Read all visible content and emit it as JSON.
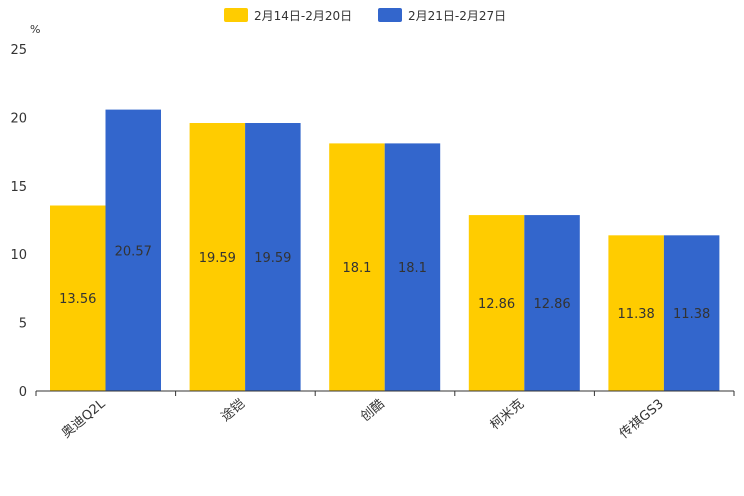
{
  "chart_data": {
    "type": "bar",
    "title": "",
    "xlabel": "",
    "ylabel": "",
    "unit_label": "%",
    "categories": [
      "奥迪Q2L",
      "途铠",
      "创酷",
      "柯米克",
      "传祺GS3"
    ],
    "series": [
      {
        "name": "2月14日-2月20日",
        "color": "#FFCC00",
        "values": [
          13.56,
          19.59,
          18.1,
          12.86,
          11.38
        ]
      },
      {
        "name": "2月21日-2月27日",
        "color": "#3366CC",
        "values": [
          20.57,
          19.59,
          18.1,
          12.86,
          11.38
        ]
      }
    ],
    "ylim": [
      0,
      25
    ],
    "yticks": [
      0,
      5,
      10,
      15,
      20,
      25
    ],
    "grid": false,
    "legend_position": "top-center",
    "label_color": "#333333"
  }
}
